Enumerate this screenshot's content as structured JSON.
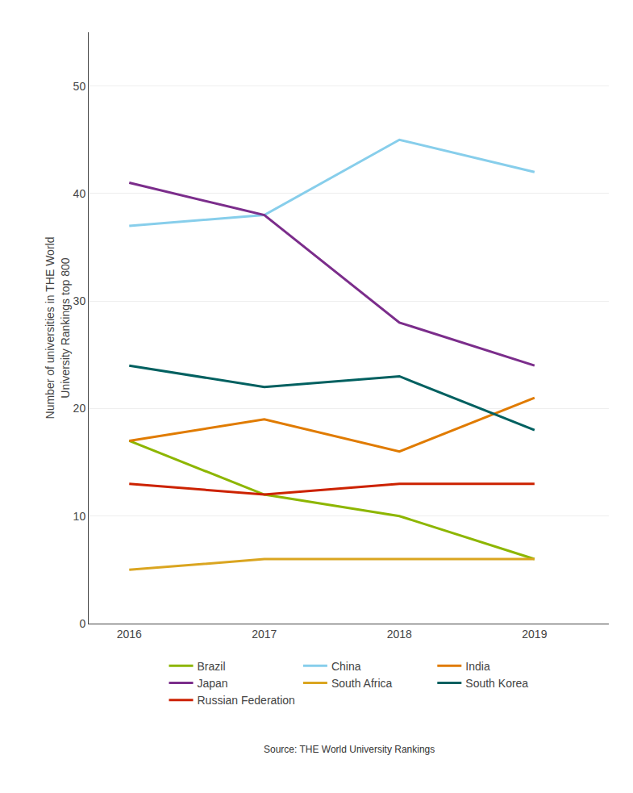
{
  "chart_data": {
    "type": "line",
    "x": [
      2016,
      2017,
      2018,
      2019
    ],
    "series": [
      {
        "name": "Brazil",
        "color": "#8DB600",
        "values": [
          17,
          12,
          10,
          6
        ]
      },
      {
        "name": "China",
        "color": "#87CEEB",
        "values": [
          37,
          38,
          45,
          42
        ]
      },
      {
        "name": "India",
        "color": "#E07B00",
        "values": [
          17,
          19,
          16,
          21
        ]
      },
      {
        "name": "Japan",
        "color": "#7B2D8B",
        "values": [
          41,
          38,
          28,
          24
        ]
      },
      {
        "name": "South Africa",
        "color": "#DAA520",
        "values": [
          5,
          6,
          6,
          6
        ]
      },
      {
        "name": "South Korea",
        "color": "#006060",
        "values": [
          24,
          22,
          23,
          18
        ]
      },
      {
        "name": "Russian Federation",
        "color": "#CC2200",
        "values": [
          13,
          12,
          13,
          13
        ]
      }
    ],
    "ylabel": "Number of universities in THE World\nUniversity Rankings top 800",
    "xlim": [
      2015.7,
      2019.55
    ],
    "xticks": [
      2016,
      2017,
      2018,
      2019
    ],
    "ylim": [
      0,
      55
    ],
    "yticks": [
      0,
      10,
      20,
      30,
      40,
      50
    ],
    "grid": "y",
    "legend": "bottom",
    "annotations": [
      "Source: THE World University Rankings"
    ]
  }
}
